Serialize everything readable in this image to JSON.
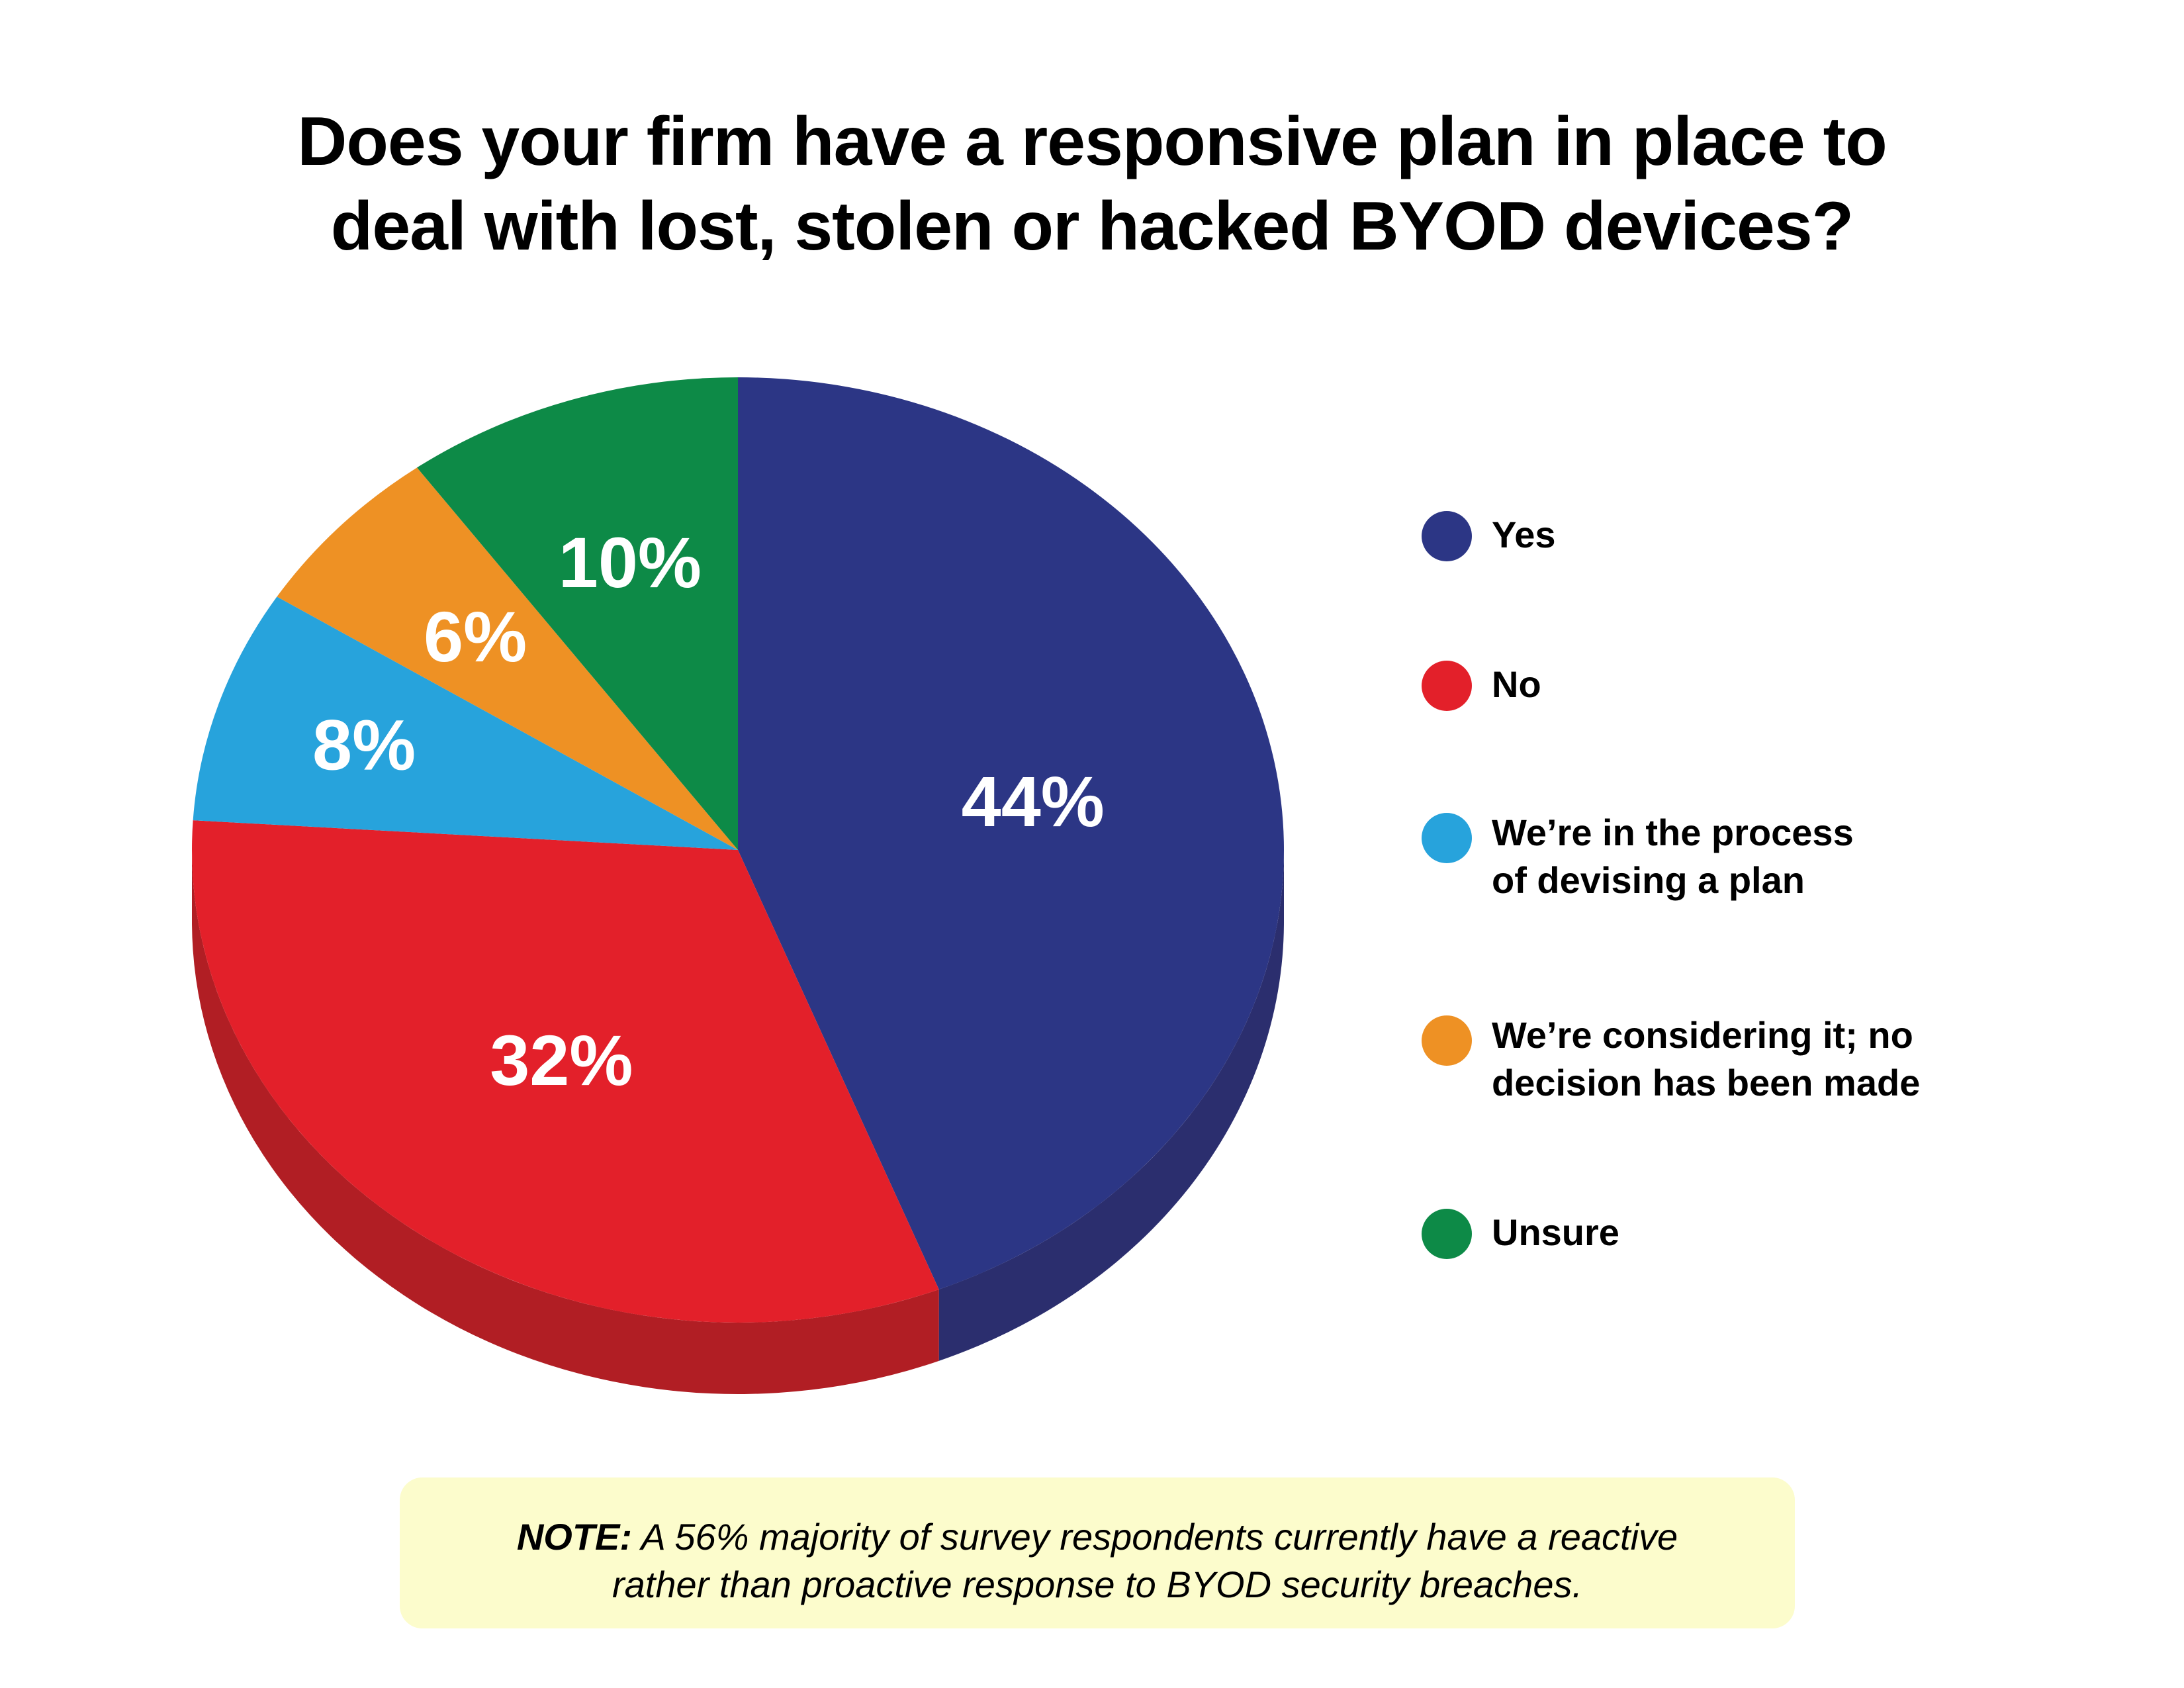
{
  "title_lines": [
    "Does your firm have a responsive plan in place to",
    "deal with lost, stolen or hacked BYOD devices?"
  ],
  "chart_data": {
    "type": "pie",
    "style": "3d",
    "title": "Does your firm have a responsive plan in place to deal with lost, stolen or hacked BYOD devices?",
    "categories": [
      "Yes",
      "No",
      "We’re in the process of devising a plan",
      "We’re considering it; no decision has been made",
      "Unsure"
    ],
    "values": [
      44,
      32,
      8,
      6,
      10
    ],
    "value_labels": [
      "44%",
      "32%",
      "8%",
      "6%",
      "10%"
    ],
    "colors": [
      "#2c3685",
      "#e3202a",
      "#27a3dc",
      "#ee9124",
      "#0d8a47"
    ],
    "side_colors": [
      "#2b2e6e",
      "#b11e24",
      "#1e82b0",
      "#c07520",
      "#0b6b37"
    ],
    "legend_position": "right"
  },
  "legend": [
    {
      "lines": [
        "Yes"
      ],
      "color": "#2c3685"
    },
    {
      "lines": [
        "No"
      ],
      "color": "#e3202a"
    },
    {
      "lines": [
        "We’re in the process",
        "of devising a plan"
      ],
      "color": "#27a3dc"
    },
    {
      "lines": [
        "We’re considering it; no",
        "decision has been made"
      ],
      "color": "#ee9124"
    },
    {
      "lines": [
        "Unsure"
      ],
      "color": "#0d8a47"
    }
  ],
  "note": {
    "label": "NOTE:",
    "line1": " A 56% majority of survey respondents currently have a reactive",
    "line2": "rather than proactive response to BYOD security breaches."
  }
}
